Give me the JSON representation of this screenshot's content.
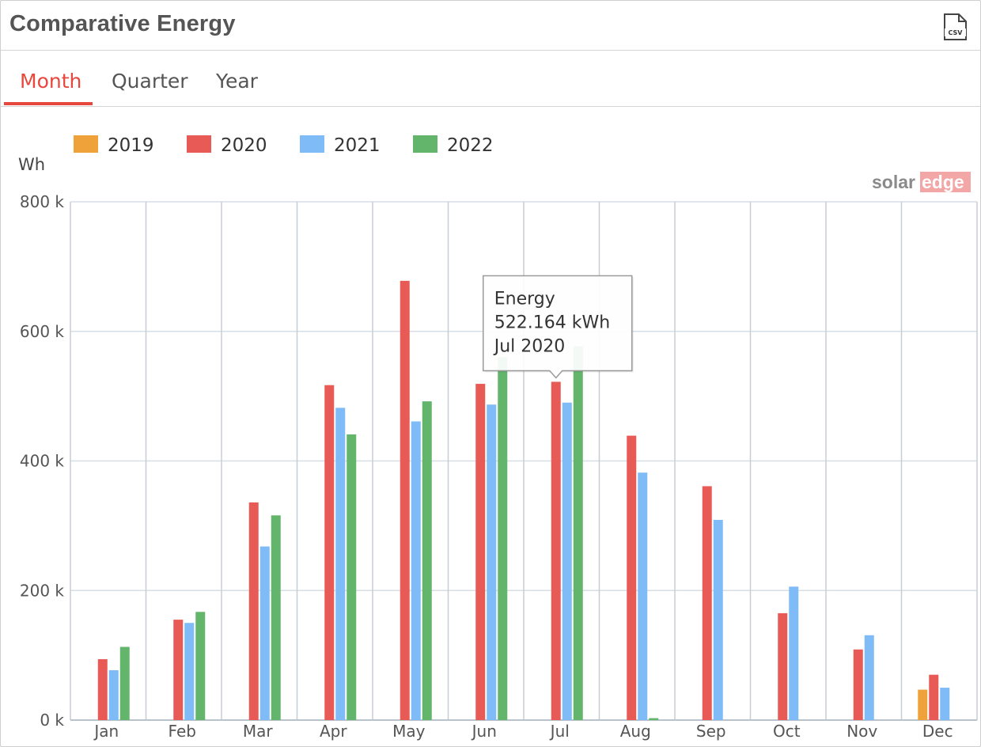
{
  "header": {
    "title": "Comparative Energy",
    "csv_label": "CSV"
  },
  "tabs": [
    {
      "label": "Month",
      "active": true
    },
    {
      "label": "Quarter",
      "active": false
    },
    {
      "label": "Year",
      "active": false
    }
  ],
  "colors": {
    "accent": "#e8473d",
    "series_2019": "#f0a23a",
    "series_2020": "#e85a55",
    "series_2021": "#7fbcf7",
    "series_2022": "#62b56b",
    "grid": "#c8cdd4"
  },
  "brand": {
    "text_solar": "solar",
    "text_edge": "edge"
  },
  "tooltip": {
    "line1": "Energy",
    "line2": "522.164 kWh",
    "line3": "Jul 2020",
    "series": "2020",
    "category": "Jul"
  },
  "chart_data": {
    "type": "bar",
    "ylabel": "Wh",
    "ylim": [
      0,
      800000
    ],
    "yticks": [
      0,
      200000,
      400000,
      600000,
      800000
    ],
    "ytick_labels": [
      "0 k",
      "200 k",
      "400 k",
      "600 k",
      "800 k"
    ],
    "legend_position": "top-left",
    "grid": true,
    "categories": [
      "Jan",
      "Feb",
      "Mar",
      "Apr",
      "May",
      "Jun",
      "Jul",
      "Aug",
      "Sep",
      "Oct",
      "Nov",
      "Dec"
    ],
    "series": [
      {
        "name": "2019",
        "color": "#f0a23a",
        "values": [
          null,
          null,
          null,
          null,
          null,
          null,
          null,
          null,
          null,
          null,
          null,
          47000
        ]
      },
      {
        "name": "2020",
        "color": "#e85a55",
        "values": [
          94000,
          155000,
          336000,
          517000,
          678000,
          519000,
          522164,
          439000,
          361000,
          165000,
          109000,
          70000
        ]
      },
      {
        "name": "2021",
        "color": "#7fbcf7",
        "values": [
          77000,
          150000,
          268000,
          482000,
          461000,
          487000,
          490000,
          382000,
          309000,
          206000,
          131000,
          50000
        ]
      },
      {
        "name": "2022",
        "color": "#62b56b",
        "values": [
          113000,
          167000,
          316000,
          441000,
          492000,
          560000,
          577000,
          3000,
          null,
          null,
          null,
          null
        ]
      }
    ]
  }
}
